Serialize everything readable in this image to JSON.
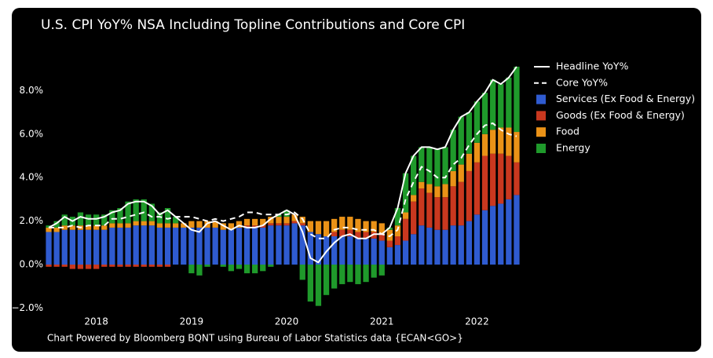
{
  "chart_data": {
    "type": "bar",
    "stacking": "relative",
    "title": "U.S. CPI YoY% NSA Including Topline Contributions and Core CPI",
    "footnote": "Chart Powered by Bloomberg BQNT using Bureau of Labor Statistics data   {ECAN<GO>}",
    "categories": [
      null,
      null,
      null,
      null,
      null,
      null,
      "2018",
      null,
      null,
      null,
      null,
      null,
      null,
      null,
      null,
      null,
      null,
      null,
      "2019",
      null,
      null,
      null,
      null,
      null,
      null,
      null,
      null,
      null,
      null,
      null,
      "2020",
      null,
      null,
      null,
      null,
      null,
      null,
      null,
      null,
      null,
      null,
      null,
      "2021",
      null,
      null,
      null,
      null,
      null,
      null,
      null,
      null,
      null,
      null,
      null,
      "2022",
      null,
      null,
      null,
      null,
      null
    ],
    "ylim": [
      -2.4,
      9.3
    ],
    "yticks": [
      {
        "value": -2,
        "label": "−2.0%"
      },
      {
        "value": 0,
        "label": "0.0%"
      },
      {
        "value": 2,
        "label": "2.0%"
      },
      {
        "value": 4,
        "label": "4.0%"
      },
      {
        "value": 6,
        "label": "6.0%"
      },
      {
        "value": 8,
        "label": "8.0%"
      }
    ],
    "grid": false,
    "legend": "top-right",
    "background": "#000000",
    "series": [
      {
        "name": "Headline YoY%",
        "type": "line",
        "dash": false,
        "color": "#ffffff",
        "values": [
          1.7,
          1.9,
          2.2,
          2.0,
          2.2,
          2.1,
          2.1,
          2.2,
          2.4,
          2.5,
          2.8,
          2.9,
          2.9,
          2.7,
          2.3,
          2.5,
          2.2,
          1.9,
          1.6,
          1.5,
          1.9,
          2.0,
          1.8,
          1.6,
          1.8,
          1.7,
          1.7,
          1.8,
          2.1,
          2.3,
          2.5,
          2.3,
          1.5,
          0.3,
          0.1,
          0.6,
          1.0,
          1.3,
          1.4,
          1.2,
          1.2,
          1.4,
          1.4,
          1.7,
          2.6,
          4.2,
          5.0,
          5.4,
          5.4,
          5.3,
          5.4,
          6.2,
          6.8,
          7.0,
          7.5,
          7.9,
          8.5,
          8.3,
          8.6,
          9.1
        ]
      },
      {
        "name": "Core YoY%",
        "type": "line",
        "dash": true,
        "color": "#ffffff",
        "values": [
          1.7,
          1.7,
          1.7,
          1.8,
          1.7,
          1.8,
          1.8,
          1.8,
          2.1,
          2.1,
          2.2,
          2.3,
          2.4,
          2.2,
          2.2,
          2.1,
          2.2,
          2.2,
          2.2,
          2.1,
          2.0,
          2.1,
          2.0,
          2.1,
          2.2,
          2.4,
          2.4,
          2.3,
          2.3,
          2.3,
          2.3,
          2.4,
          2.1,
          1.4,
          1.2,
          1.2,
          1.6,
          1.7,
          1.7,
          1.6,
          1.6,
          1.6,
          1.4,
          1.3,
          1.6,
          3.0,
          3.8,
          4.5,
          4.3,
          4.0,
          4.0,
          4.6,
          4.9,
          5.5,
          6.0,
          6.4,
          6.5,
          6.2,
          6.0,
          5.9
        ]
      },
      {
        "name": "Services (Ex Food & Energy)",
        "type": "bar",
        "color": "#2f5bd0",
        "values": [
          1.5,
          1.5,
          1.6,
          1.6,
          1.6,
          1.6,
          1.6,
          1.6,
          1.7,
          1.7,
          1.7,
          1.8,
          1.8,
          1.8,
          1.7,
          1.7,
          1.7,
          1.7,
          1.7,
          1.7,
          1.7,
          1.7,
          1.6,
          1.6,
          1.7,
          1.7,
          1.7,
          1.7,
          1.8,
          1.8,
          1.8,
          1.9,
          1.8,
          1.5,
          1.4,
          1.3,
          1.3,
          1.3,
          1.3,
          1.2,
          1.2,
          1.2,
          1.1,
          0.8,
          0.9,
          1.1,
          1.4,
          1.8,
          1.7,
          1.6,
          1.6,
          1.8,
          1.8,
          2.0,
          2.3,
          2.5,
          2.7,
          2.8,
          3.0,
          3.2
        ]
      },
      {
        "name": "Goods (Ex Food & Energy)",
        "type": "bar",
        "color": "#c9381f",
        "values": [
          -0.1,
          -0.1,
          -0.1,
          -0.2,
          -0.2,
          -0.2,
          -0.2,
          -0.1,
          -0.1,
          -0.1,
          -0.1,
          -0.1,
          -0.1,
          -0.1,
          -0.1,
          -0.1,
          0.0,
          0.0,
          0.0,
          0.0,
          0.0,
          0.0,
          0.0,
          0.0,
          0.0,
          0.1,
          0.1,
          0.1,
          0.1,
          0.1,
          0.1,
          0.1,
          0.1,
          0.0,
          0.0,
          0.0,
          0.2,
          0.3,
          0.3,
          0.3,
          0.3,
          0.3,
          0.3,
          0.3,
          0.4,
          1.0,
          1.5,
          1.7,
          1.6,
          1.5,
          1.5,
          1.8,
          2.0,
          2.3,
          2.4,
          2.5,
          2.4,
          2.3,
          2.0,
          1.5
        ]
      },
      {
        "name": "Food",
        "type": "bar",
        "color": "#ea9217",
        "values": [
          0.2,
          0.2,
          0.2,
          0.2,
          0.2,
          0.2,
          0.2,
          0.2,
          0.2,
          0.2,
          0.2,
          0.2,
          0.2,
          0.2,
          0.2,
          0.2,
          0.2,
          0.2,
          0.3,
          0.3,
          0.3,
          0.3,
          0.3,
          0.3,
          0.3,
          0.3,
          0.3,
          0.3,
          0.3,
          0.3,
          0.3,
          0.3,
          0.3,
          0.5,
          0.6,
          0.7,
          0.6,
          0.6,
          0.6,
          0.6,
          0.5,
          0.5,
          0.5,
          0.5,
          0.5,
          0.3,
          0.3,
          0.3,
          0.4,
          0.5,
          0.6,
          0.7,
          0.8,
          0.8,
          0.9,
          1.0,
          1.1,
          1.2,
          1.3,
          1.4
        ]
      },
      {
        "name": "Energy",
        "type": "bar",
        "color": "#1f9a2b",
        "values": [
          0.1,
          0.3,
          0.5,
          0.4,
          0.6,
          0.5,
          0.5,
          0.5,
          0.6,
          0.7,
          1.0,
          1.0,
          1.0,
          0.8,
          0.5,
          0.7,
          0.3,
          0.0,
          -0.4,
          -0.5,
          -0.1,
          0.0,
          -0.1,
          -0.3,
          -0.2,
          -0.4,
          -0.4,
          -0.3,
          -0.1,
          0.1,
          0.3,
          0.0,
          -0.7,
          -1.7,
          -1.9,
          -1.4,
          -1.1,
          -0.9,
          -0.8,
          -0.9,
          -0.8,
          -0.6,
          -0.5,
          0.1,
          0.8,
          1.8,
          1.8,
          1.6,
          1.7,
          1.7,
          1.7,
          1.9,
          2.2,
          1.9,
          1.9,
          1.9,
          2.3,
          2.0,
          2.3,
          3.0
        ]
      }
    ]
  }
}
